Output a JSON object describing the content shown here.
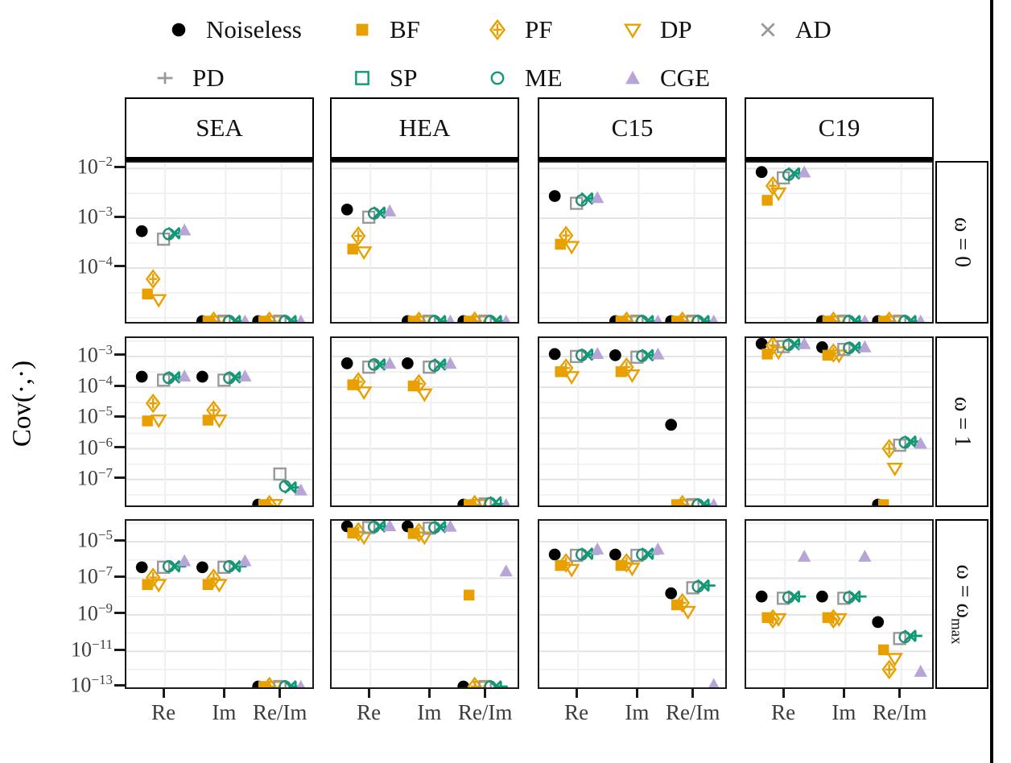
{
  "figure_type": "faceted-scatter-figure",
  "ylabel": "Cov(·,·)",
  "style": {
    "background": "#ffffff",
    "grid_major": "#e3e3e3",
    "grid_minor": "#efefef",
    "panel_border": "#1a1a1a",
    "facet_border": "#000000",
    "tick_text": "#3c3c3c",
    "orange": "#E8A000",
    "teal": "#0E9A74",
    "gray": "#999999",
    "purple": "#B7A5D8",
    "black": "#000000"
  },
  "chart_data": {
    "type": "scatter",
    "title": "",
    "xlabel": "",
    "ylabel": "Cov(·,·)",
    "x_categories": [
      "Re",
      "Im",
      "Re/Im"
    ],
    "col_facets": [
      "SEA",
      "HEA",
      "C15",
      "C19"
    ],
    "row_facets": [
      {
        "text": "ω = 0",
        "sub": ""
      },
      {
        "text": "ω = 1",
        "sub": ""
      },
      {
        "text": "ω = ω",
        "sub": "max"
      }
    ],
    "legend_rows": [
      [
        "noiseless",
        "bf",
        "pf",
        "dp",
        "ad"
      ],
      [
        "pd",
        "sp",
        "me",
        "cge"
      ]
    ],
    "methods": [
      {
        "id": "noiseless",
        "label": "Noiseless",
        "marker": "circle-filled",
        "color": "#000000"
      },
      {
        "id": "bf",
        "label": "BF",
        "marker": "square-filled",
        "color": "#E8A000"
      },
      {
        "id": "pf",
        "label": "PF",
        "marker": "diamond-cross",
        "color": "#E8A000"
      },
      {
        "id": "dp",
        "label": "DP",
        "marker": "triangle-down-open",
        "color": "#E8A000"
      },
      {
        "id": "ad",
        "label": "AD",
        "marker": "x-cross",
        "color": "#999999",
        "plot_color": "#0E9A74"
      },
      {
        "id": "pd",
        "label": "PD",
        "marker": "plus",
        "color": "#999999",
        "plot_color": "#0E9A74"
      },
      {
        "id": "sp",
        "label": "SP",
        "marker": "square-open",
        "color": "#0E9A74",
        "plot_color": "#999999"
      },
      {
        "id": "me",
        "label": "ME",
        "marker": "circle-open",
        "color": "#0E9A74",
        "plot_color": "#2a8c79"
      },
      {
        "id": "cge",
        "label": "CGE",
        "marker": "triangle-up-filled",
        "color": "#B7A5D8"
      }
    ],
    "dodge_order": [
      "noiseless",
      "bf",
      "pf",
      "dp",
      "sp",
      "me",
      "ad",
      "pd",
      "cge"
    ],
    "rows": [
      {
        "strip": "ω = 0",
        "ticks_exp": [
          -2,
          -3,
          -4
        ],
        "ylim_exp": [
          -1.88,
          -5.15
        ],
        "panels": {
          "SEA": {
            "Re": [
              0.00055,
              3e-05,
              6e-05,
              2.3e-05,
              0.00038,
              0.00048,
              0.0005,
              0.0005,
              0.00058
            ],
            "Im": "floor",
            "Re/Im": "floor"
          },
          "HEA": {
            "Re": [
              0.0015,
              0.00024,
              0.00044,
              0.00021,
              0.00105,
              0.00125,
              0.0013,
              0.0013,
              0.0014
            ],
            "Im": "floor",
            "Re/Im": "floor"
          },
          "C15": {
            "Re": [
              0.0028,
              0.0003,
              0.00045,
              0.00027,
              0.002,
              0.0023,
              0.0025,
              0.0025,
              0.0026
            ],
            "Im": "floor",
            "Re/Im": "floor"
          },
          "C19": {
            "Re": [
              0.0085,
              0.0023,
              0.0045,
              0.0032,
              0.0065,
              0.0075,
              0.008,
              0.008,
              0.0085
            ],
            "Im": "floor",
            "Re/Im": "floor"
          }
        }
      },
      {
        "strip": "ω = 1",
        "ticks_exp": [
          -3,
          -4,
          -5,
          -6,
          -7
        ],
        "ylim_exp": [
          -2.4,
          -7.95
        ],
        "panels": {
          "SEA": {
            "Re": [
              0.00022,
              8e-06,
              3e-05,
              8.5e-06,
              0.00017,
              0.0002,
              0.00021,
              0.00021,
              0.00023
            ],
            "Im": [
              0.00022,
              8.5e-06,
              1.8e-05,
              8.5e-06,
              0.00017,
              0.0002,
              0.00021,
              0.00021,
              0.00023
            ],
            "Re/Im": [
              "floor",
              "floor",
              "floor",
              "floor",
              1.5e-07,
              6e-08,
              5.5e-08,
              5.5e-08,
              4.5e-08
            ]
          },
          "HEA": {
            "Re": [
              0.0006,
              0.00012,
              0.00015,
              7e-05,
              0.00045,
              0.00055,
              0.00055,
              0.00055,
              0.0006
            ],
            "Im": [
              0.0006,
              0.00011,
              0.00013,
              6e-05,
              0.00045,
              0.0005,
              0.00055,
              0.00055,
              0.0006
            ],
            "Re/Im": [
              "floor",
              "floor",
              "floor",
              "floor",
              1.6e-08,
              1.7e-08,
              1.8e-08,
              1.6e-08,
              1.5e-08
            ]
          },
          "C15": {
            "Re": [
              0.0012,
              0.00032,
              0.00042,
              0.00022,
              0.001,
              0.0011,
              0.00115,
              0.00115,
              0.00125
            ],
            "Im": [
              0.0011,
              0.00032,
              0.00045,
              0.00025,
              0.00095,
              0.00105,
              0.0011,
              0.0011,
              0.0012
            ],
            "Re/Im": [
              6e-06,
              "floor",
              "floor",
              "floor",
              "floor",
              "floor",
              "floor",
              "floor",
              "floor"
            ]
          },
          "C19": {
            "Re": [
              0.0026,
              0.0012,
              0.0023,
              0.0014,
              0.0021,
              0.0024,
              0.0025,
              0.0025,
              0.0026
            ],
            "Im": [
              0.002,
              0.0011,
              0.0013,
              0.0011,
              0.0017,
              0.0019,
              0.00195,
              0.00195,
              0.00205
            ],
            "Re/Im": [
              "floor",
              "floor",
              1e-06,
              2.3e-07,
              1.3e-06,
              1.6e-06,
              1.7e-06,
              1.7e-06,
              1.5e-06
            ]
          }
        }
      },
      {
        "strip": "ω = ωmax",
        "ticks_exp": [
          -5,
          -7,
          -9,
          -11,
          -13
        ],
        "ylim_exp": [
          -3.85,
          -13.15
        ],
        "panels": {
          "SEA": {
            "Re": [
              4e-07,
              4.5e-08,
              1.1e-07,
              4.5e-08,
              4e-07,
              4.5e-07,
              4.5e-07,
              4.5e-07,
              9e-07
            ],
            "Im": [
              4e-07,
              4.5e-08,
              1e-07,
              4.5e-08,
              4e-07,
              4.5e-07,
              4.5e-07,
              4.5e-07,
              9e-07
            ],
            "Re/Im": "floor"
          },
          "HEA": {
            "Re": [
              7e-05,
              3e-05,
              3.5e-05,
              1.8e-05,
              6e-05,
              6.5e-05,
              7e-05,
              7e-05,
              7.5e-05
            ],
            "Im": [
              7e-05,
              2.8e-05,
              3.2e-05,
              1.8e-05,
              5.5e-05,
              6e-05,
              6.5e-05,
              6.5e-05,
              7e-05
            ],
            "Re/Im": [
              "floor",
              1.2e-08,
              "floor",
              "floor",
              "floor",
              "floor",
              "floor",
              "floor",
              2.5e-07
            ]
          },
          "C15": {
            "Re": [
              2e-06,
              5e-07,
              7e-07,
              3e-07,
              1.8e-06,
              2e-06,
              2.2e-06,
              2.2e-06,
              4e-06
            ],
            "Im": [
              2e-06,
              5e-07,
              7e-07,
              3.5e-07,
              1.8e-06,
              2e-06,
              2.2e-06,
              2.2e-06,
              4e-06
            ],
            "Re/Im": [
              1.5e-08,
              3.5e-09,
              4.5e-09,
              1.5e-09,
              3e-08,
              3.5e-08,
              4e-08,
              4e-08,
              1.5e-13
            ]
          },
          "C19": {
            "Re": [
              1e-08,
              7e-10,
              6e-10,
              6e-10,
              8e-09,
              9e-09,
              1e-08,
              1e-08,
              1.6e-06
            ],
            "Im": [
              1e-08,
              7e-10,
              6e-10,
              6e-10,
              8e-09,
              9e-09,
              1e-08,
              1e-08,
              1.6e-06
            ],
            "Re/Im": [
              4e-10,
              1.2e-11,
              1e-12,
              4e-12,
              5e-11,
              6e-11,
              7e-11,
              7e-11,
              8e-13
            ]
          }
        }
      }
    ]
  }
}
